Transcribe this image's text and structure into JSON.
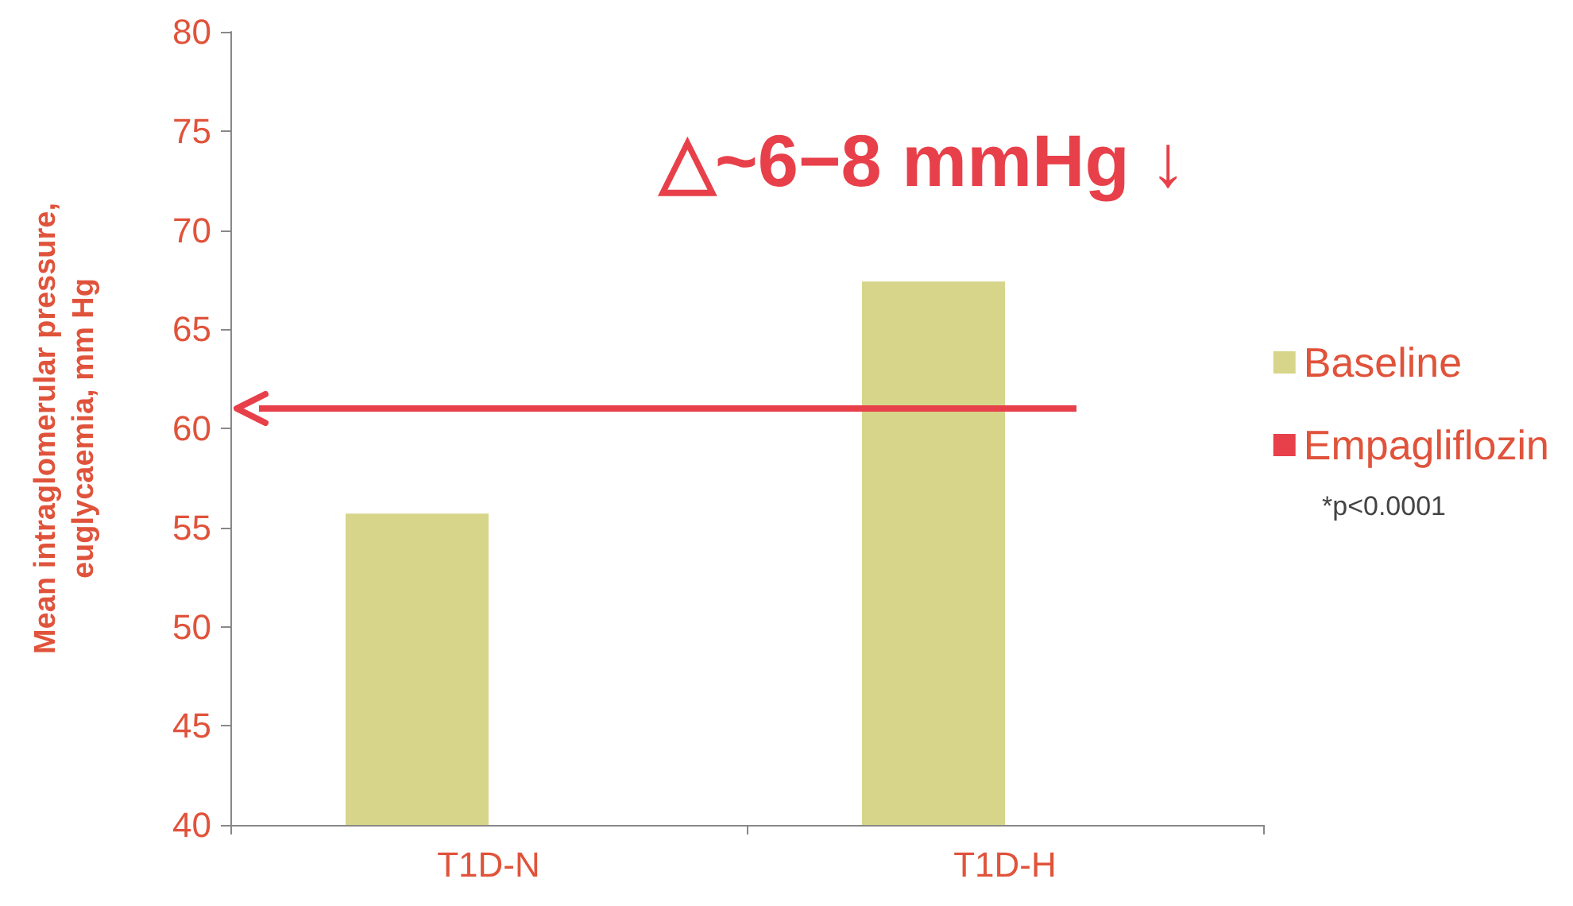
{
  "chart_data": {
    "type": "bar",
    "title": "△~6−8 mmHg ↓",
    "ylabel": "Mean intraglomerular pressure,\neuglycaemia, mm Hg",
    "categories": [
      "T1D-N",
      "T1D-H"
    ],
    "series": [
      {
        "name": "Baseline",
        "color": "#d6d58a",
        "values": [
          55.7,
          67.4
        ]
      },
      {
        "name": "Empagliflozin",
        "color": "#e8404a",
        "values": [
          40,
          40
        ]
      }
    ],
    "ylim": [
      40,
      80
    ],
    "yticks": [
      40,
      45,
      50,
      55,
      60,
      65,
      70,
      75,
      80
    ],
    "grid": false,
    "legend": "right",
    "ref_lines": [
      {
        "axis": "y",
        "value": 61,
        "label": null,
        "color": "#e8404a"
      }
    ],
    "annotations": [
      "*p<0.0001"
    ]
  }
}
